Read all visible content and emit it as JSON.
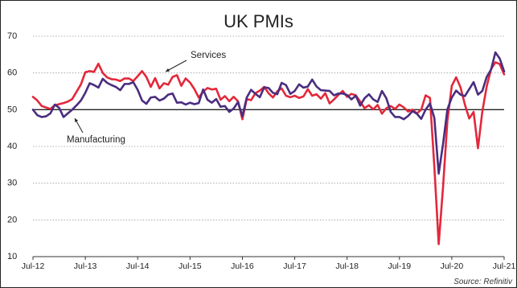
{
  "chart_data": {
    "type": "line",
    "title": "UK PMIs",
    "source": "Source: Refinitiv",
    "ylim": [
      10,
      70
    ],
    "y_ticks": [
      10,
      20,
      30,
      40,
      50,
      60,
      70
    ],
    "x_ticks": [
      "Jul-12",
      "Jul-13",
      "Jul-14",
      "Jul-15",
      "Jul-16",
      "Jul-17",
      "Jul-18",
      "Jul-19",
      "Jul-20",
      "Jul-21"
    ],
    "reference_line": 50,
    "grid": "horizontal-dotted",
    "annotations": [
      {
        "text": "Services",
        "target_series": "Services"
      },
      {
        "text": "Manufacturing",
        "target_series": "Manufacturing"
      }
    ],
    "series": [
      {
        "name": "Services",
        "color": "#e3283b",
        "x": [
          "2012-07",
          "2012-08",
          "2012-09",
          "2012-10",
          "2012-11",
          "2012-12",
          "2013-01",
          "2013-02",
          "2013-03",
          "2013-04",
          "2013-05",
          "2013-06",
          "2013-07",
          "2013-08",
          "2013-09",
          "2013-10",
          "2013-11",
          "2013-12",
          "2014-01",
          "2014-02",
          "2014-03",
          "2014-04",
          "2014-05",
          "2014-06",
          "2014-07",
          "2014-08",
          "2014-09",
          "2014-10",
          "2014-11",
          "2014-12",
          "2015-01",
          "2015-02",
          "2015-03",
          "2015-04",
          "2015-05",
          "2015-06",
          "2015-07",
          "2015-08",
          "2015-09",
          "2015-10",
          "2015-11",
          "2015-12",
          "2016-01",
          "2016-02",
          "2016-03",
          "2016-04",
          "2016-05",
          "2016-06",
          "2016-07",
          "2016-08",
          "2016-09",
          "2016-10",
          "2016-11",
          "2016-12",
          "2017-01",
          "2017-02",
          "2017-03",
          "2017-04",
          "2017-05",
          "2017-06",
          "2017-07",
          "2017-08",
          "2017-09",
          "2017-10",
          "2017-11",
          "2017-12",
          "2018-01",
          "2018-02",
          "2018-03",
          "2018-04",
          "2018-05",
          "2018-06",
          "2018-07",
          "2018-08",
          "2018-09",
          "2018-10",
          "2018-11",
          "2018-12",
          "2019-01",
          "2019-02",
          "2019-03",
          "2019-04",
          "2019-05",
          "2019-06",
          "2019-07",
          "2019-08",
          "2019-09",
          "2019-10",
          "2019-11",
          "2019-12",
          "2020-01",
          "2020-02",
          "2020-03",
          "2020-04",
          "2020-05",
          "2020-06",
          "2020-07",
          "2020-08",
          "2020-09",
          "2020-10",
          "2020-11",
          "2020-12",
          "2021-01",
          "2021-02",
          "2021-03",
          "2021-04",
          "2021-05",
          "2021-06",
          "2021-07"
        ],
        "values": [
          53.5,
          52.5,
          51.0,
          50.6,
          50.2,
          51.2,
          51.5,
          51.8,
          52.2,
          52.9,
          54.9,
          56.9,
          60.2,
          60.5,
          60.3,
          62.5,
          60.0,
          58.8,
          58.3,
          58.2,
          57.8,
          58.5,
          58.5,
          57.8,
          59.1,
          60.5,
          58.9,
          56.2,
          58.6,
          55.8,
          57.2,
          56.8,
          58.9,
          59.4,
          56.5,
          58.5,
          57.4,
          55.6,
          53.3,
          54.9,
          55.9,
          55.5,
          55.7,
          52.7,
          53.7,
          52.3,
          53.5,
          52.3,
          47.4,
          52.9,
          52.6,
          54.5,
          55.2,
          56.2,
          54.5,
          53.3,
          55.0,
          55.8,
          53.8,
          53.4,
          53.8,
          53.2,
          53.6,
          55.6,
          53.8,
          54.2,
          53.0,
          54.5,
          51.7,
          52.8,
          54.0,
          55.1,
          53.5,
          54.3,
          53.9,
          52.2,
          50.4,
          51.2,
          50.1,
          51.3,
          48.9,
          50.4,
          51.0,
          50.2,
          51.4,
          50.6,
          49.5,
          50.0,
          49.0,
          50.0,
          53.9,
          53.2,
          34.5,
          13.4,
          29.0,
          47.1,
          56.5,
          58.8,
          56.1,
          51.4,
          47.6,
          49.4,
          39.5,
          49.5,
          56.3,
          61.0,
          62.9,
          62.4,
          59.6
        ]
      },
      {
        "name": "Manufacturing",
        "color": "#4a2d7f",
        "x": [
          "2012-07",
          "2012-08",
          "2012-09",
          "2012-10",
          "2012-11",
          "2012-12",
          "2013-01",
          "2013-02",
          "2013-03",
          "2013-04",
          "2013-05",
          "2013-06",
          "2013-07",
          "2013-08",
          "2013-09",
          "2013-10",
          "2013-11",
          "2013-12",
          "2014-01",
          "2014-02",
          "2014-03",
          "2014-04",
          "2014-05",
          "2014-06",
          "2014-07",
          "2014-08",
          "2014-09",
          "2014-10",
          "2014-11",
          "2014-12",
          "2015-01",
          "2015-02",
          "2015-03",
          "2015-04",
          "2015-05",
          "2015-06",
          "2015-07",
          "2015-08",
          "2015-09",
          "2015-10",
          "2015-11",
          "2015-12",
          "2016-01",
          "2016-02",
          "2016-03",
          "2016-04",
          "2016-05",
          "2016-06",
          "2016-07",
          "2016-08",
          "2016-09",
          "2016-10",
          "2016-11",
          "2016-12",
          "2017-01",
          "2017-02",
          "2017-03",
          "2017-04",
          "2017-05",
          "2017-06",
          "2017-07",
          "2017-08",
          "2017-09",
          "2017-10",
          "2017-11",
          "2017-12",
          "2018-01",
          "2018-02",
          "2018-03",
          "2018-04",
          "2018-05",
          "2018-06",
          "2018-07",
          "2018-08",
          "2018-09",
          "2018-10",
          "2018-11",
          "2018-12",
          "2019-01",
          "2019-02",
          "2019-03",
          "2019-04",
          "2019-05",
          "2019-06",
          "2019-07",
          "2019-08",
          "2019-09",
          "2019-10",
          "2019-11",
          "2019-12",
          "2020-01",
          "2020-02",
          "2020-03",
          "2020-04",
          "2020-05",
          "2020-06",
          "2020-07",
          "2020-08",
          "2020-09",
          "2020-10",
          "2020-11",
          "2020-12",
          "2021-01",
          "2021-02",
          "2021-03",
          "2021-04",
          "2021-05",
          "2021-06",
          "2021-07"
        ],
        "values": [
          50.0,
          48.5,
          48.0,
          48.2,
          49.0,
          51.4,
          50.5,
          48.0,
          49.0,
          50.0,
          51.2,
          52.5,
          54.6,
          57.2,
          56.7,
          56.0,
          58.4,
          57.3,
          56.7,
          56.2,
          55.3,
          57.0,
          57.0,
          57.5,
          55.4,
          52.5,
          51.6,
          53.3,
          53.5,
          52.5,
          53.0,
          54.1,
          54.4,
          51.9,
          52.0,
          51.4,
          51.9,
          51.5,
          51.8,
          55.5,
          52.7,
          51.9,
          52.9,
          50.8,
          51.0,
          49.4,
          50.3,
          52.1,
          48.2,
          53.3,
          55.4,
          54.3,
          53.4,
          56.1,
          55.9,
          54.6,
          54.2,
          57.3,
          56.7,
          54.3,
          55.1,
          56.9,
          56.0,
          56.3,
          58.2,
          56.3,
          55.3,
          55.2,
          55.1,
          53.9,
          54.4,
          54.4,
          54.0,
          52.8,
          53.8,
          51.1,
          53.1,
          54.2,
          52.8,
          52.1,
          55.1,
          53.1,
          49.4,
          48.0,
          48.0,
          47.4,
          48.3,
          49.6,
          48.9,
          47.5,
          50.0,
          51.7,
          47.8,
          32.6,
          40.7,
          50.1,
          53.3,
          55.2,
          54.1,
          53.7,
          55.6,
          57.5,
          54.1,
          55.1,
          58.9,
          60.9,
          65.6,
          63.9,
          60.4
        ]
      }
    ]
  }
}
